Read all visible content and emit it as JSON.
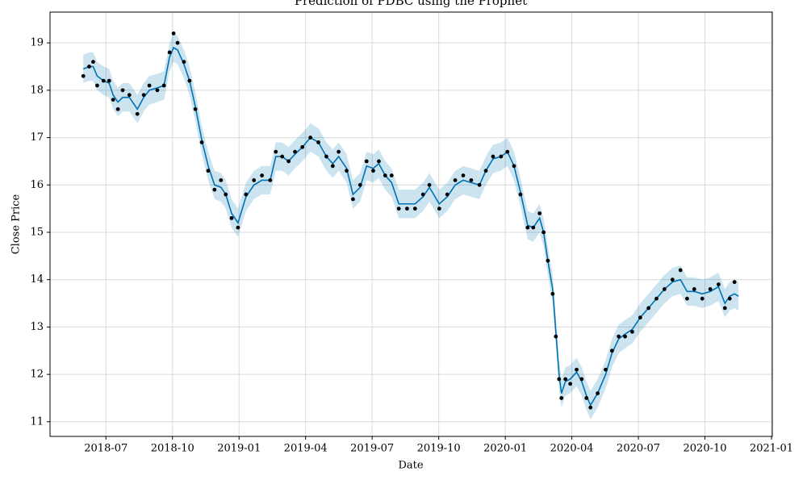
{
  "chart_data": {
    "type": "forecast",
    "title": "Prediction of PDBC  using the Prophet",
    "x_label": "Date",
    "y_label": "Close Price",
    "xlim": [
      2018.29,
      2021.003
    ],
    "ylim": [
      10.69,
      19.65
    ],
    "xticks": [
      {
        "value": 2018.5,
        "label": "2018-07"
      },
      {
        "value": 2018.75,
        "label": "2018-10"
      },
      {
        "value": 2019.0,
        "label": "2019-01"
      },
      {
        "value": 2019.25,
        "label": "2019-04"
      },
      {
        "value": 2019.5,
        "label": "2019-07"
      },
      {
        "value": 2019.75,
        "label": "2019-10"
      },
      {
        "value": 2020.0,
        "label": "2020-01"
      },
      {
        "value": 2020.25,
        "label": "2020-04"
      },
      {
        "value": 2020.5,
        "label": "2020-07"
      },
      {
        "value": 2020.75,
        "label": "2020-10"
      },
      {
        "value": 2021.0,
        "label": "2021-01"
      }
    ],
    "yticks": [
      11,
      12,
      13,
      14,
      15,
      16,
      17,
      18,
      19
    ],
    "grid": true,
    "x": [
      2018.415,
      2018.437,
      2018.452,
      2018.467,
      2018.491,
      2018.512,
      2018.527,
      2018.545,
      2018.563,
      2018.588,
      2018.618,
      2018.642,
      2018.663,
      2018.693,
      2018.718,
      2018.739,
      2018.754,
      2018.769,
      2018.793,
      2018.814,
      2018.836,
      2018.86,
      2018.884,
      2018.908,
      2018.932,
      2018.95,
      2018.972,
      2018.996,
      2019.026,
      2019.056,
      2019.086,
      2019.117,
      2019.138,
      2019.162,
      2019.186,
      2019.21,
      2019.238,
      2019.268,
      2019.298,
      2019.328,
      2019.352,
      2019.374,
      2019.404,
      2019.428,
      2019.455,
      2019.479,
      2019.504,
      2019.525,
      2019.549,
      2019.573,
      2019.6,
      2019.631,
      2019.661,
      2019.691,
      2019.715,
      2019.752,
      2019.782,
      2019.812,
      2019.842,
      2019.872,
      2019.903,
      2019.927,
      2019.954,
      2019.984,
      2020.008,
      2020.033,
      2020.057,
      2020.084,
      2020.105,
      2020.129,
      2020.144,
      2020.16,
      2020.178,
      2020.19,
      2020.202,
      2020.211,
      2020.226,
      2020.244,
      2020.268,
      2020.287,
      2020.305,
      2020.32,
      2020.347,
      2020.377,
      2020.401,
      2020.426,
      2020.45,
      2020.477,
      2020.507,
      2020.538,
      2020.568,
      2020.598,
      2020.628,
      2020.658,
      2020.683,
      2020.71,
      2020.74,
      2020.77,
      2020.801,
      2020.825,
      2020.843,
      2020.861,
      2020.876
    ],
    "series": [
      {
        "kind": "scatter",
        "color": "#000000",
        "values": [
          18.3,
          18.5,
          18.6,
          18.1,
          18.2,
          18.2,
          17.8,
          17.6,
          18.0,
          17.9,
          17.5,
          17.9,
          18.1,
          18.0,
          18.1,
          18.8,
          19.2,
          19.0,
          18.6,
          18.2,
          17.6,
          16.9,
          16.3,
          15.9,
          16.1,
          15.8,
          15.3,
          15.1,
          15.8,
          16.1,
          16.2,
          16.1,
          16.7,
          16.6,
          16.5,
          16.7,
          16.8,
          17.0,
          16.9,
          16.6,
          16.4,
          16.7,
          16.3,
          15.7,
          16.0,
          16.5,
          16.3,
          16.5,
          16.2,
          16.2,
          15.5,
          15.5,
          15.5,
          15.8,
          16.0,
          15.5,
          15.8,
          16.1,
          16.2,
          16.1,
          16.0,
          16.3,
          16.6,
          16.6,
          16.7,
          16.4,
          15.8,
          15.1,
          15.1,
          15.4,
          15.0,
          14.4,
          13.7,
          12.8,
          11.9,
          11.5,
          11.9,
          11.8,
          12.1,
          11.9,
          11.5,
          11.3,
          11.6,
          12.1,
          12.5,
          12.8,
          12.8,
          12.9,
          13.2,
          13.4,
          13.6,
          13.8,
          14.0,
          14.2,
          13.6,
          13.8,
          13.6,
          13.8,
          13.9,
          13.4,
          13.6,
          13.95,
          null
        ]
      },
      {
        "kind": "line",
        "color": "#0072B2",
        "band_color": "#0072B2",
        "values": [
          18.45,
          18.5,
          18.5,
          18.3,
          18.2,
          18.15,
          17.9,
          17.75,
          17.85,
          17.85,
          17.6,
          17.85,
          18.0,
          18.05,
          18.1,
          18.7,
          18.9,
          18.85,
          18.55,
          18.2,
          17.65,
          16.95,
          16.4,
          16.0,
          15.95,
          15.8,
          15.4,
          15.2,
          15.75,
          16.0,
          16.1,
          16.1,
          16.6,
          16.6,
          16.5,
          16.65,
          16.8,
          17.0,
          16.9,
          16.6,
          16.45,
          16.6,
          16.35,
          15.8,
          15.95,
          16.4,
          16.35,
          16.45,
          16.2,
          16.05,
          15.6,
          15.6,
          15.6,
          15.75,
          15.95,
          15.6,
          15.75,
          16.0,
          16.1,
          16.05,
          16.0,
          16.3,
          16.55,
          16.6,
          16.7,
          16.4,
          15.85,
          15.15,
          15.1,
          15.3,
          15.0,
          14.4,
          13.8,
          12.9,
          12.0,
          11.6,
          11.85,
          11.9,
          12.05,
          11.85,
          11.55,
          11.35,
          11.6,
          12.0,
          12.45,
          12.75,
          12.85,
          12.95,
          13.2,
          13.4,
          13.6,
          13.8,
          13.95,
          14.0,
          13.75,
          13.75,
          13.7,
          13.75,
          13.85,
          13.5,
          13.65,
          13.7,
          13.65
        ],
        "lower": [
          18.15,
          18.2,
          18.2,
          18.0,
          17.9,
          17.85,
          17.6,
          17.45,
          17.55,
          17.55,
          17.3,
          17.55,
          17.7,
          17.75,
          17.8,
          18.4,
          18.6,
          18.55,
          18.25,
          17.9,
          17.35,
          16.65,
          16.1,
          15.7,
          15.65,
          15.5,
          15.1,
          14.9,
          15.45,
          15.7,
          15.8,
          15.8,
          16.3,
          16.3,
          16.2,
          16.35,
          16.5,
          16.7,
          16.6,
          16.3,
          16.15,
          16.3,
          16.05,
          15.5,
          15.65,
          16.1,
          16.05,
          16.15,
          15.9,
          15.75,
          15.3,
          15.3,
          15.3,
          15.45,
          15.65,
          15.3,
          15.45,
          15.7,
          15.8,
          15.75,
          15.7,
          16.0,
          16.25,
          16.3,
          16.4,
          16.1,
          15.55,
          14.85,
          14.8,
          15.0,
          14.7,
          14.1,
          13.5,
          12.6,
          11.7,
          11.3,
          11.55,
          11.6,
          11.75,
          11.55,
          11.25,
          11.05,
          11.3,
          11.7,
          12.15,
          12.45,
          12.55,
          12.65,
          12.9,
          13.1,
          13.3,
          13.5,
          13.65,
          13.7,
          13.45,
          13.45,
          13.4,
          13.45,
          13.55,
          13.2,
          13.35,
          13.4,
          13.35
        ],
        "upper": [
          18.75,
          18.8,
          18.8,
          18.6,
          18.5,
          18.45,
          18.2,
          18.05,
          18.15,
          18.15,
          17.9,
          18.15,
          18.3,
          18.35,
          18.4,
          19.0,
          19.2,
          19.15,
          18.85,
          18.5,
          17.95,
          17.25,
          16.7,
          16.3,
          16.25,
          16.1,
          15.7,
          15.5,
          16.05,
          16.3,
          16.4,
          16.4,
          16.9,
          16.9,
          16.8,
          16.95,
          17.1,
          17.3,
          17.2,
          16.9,
          16.75,
          16.9,
          16.65,
          16.1,
          16.25,
          16.7,
          16.65,
          16.75,
          16.5,
          16.35,
          15.9,
          15.9,
          15.9,
          16.05,
          16.25,
          15.9,
          16.05,
          16.3,
          16.4,
          16.35,
          16.3,
          16.6,
          16.85,
          16.9,
          17.0,
          16.7,
          16.15,
          15.45,
          15.4,
          15.6,
          15.3,
          14.7,
          14.1,
          13.2,
          12.3,
          11.9,
          12.15,
          12.2,
          12.35,
          12.15,
          11.85,
          11.65,
          11.9,
          12.3,
          12.75,
          13.05,
          13.15,
          13.25,
          13.5,
          13.7,
          13.9,
          14.1,
          14.25,
          14.3,
          14.05,
          14.05,
          14.0,
          14.05,
          14.15,
          13.8,
          13.95,
          14.0,
          13.95
        ]
      }
    ]
  }
}
